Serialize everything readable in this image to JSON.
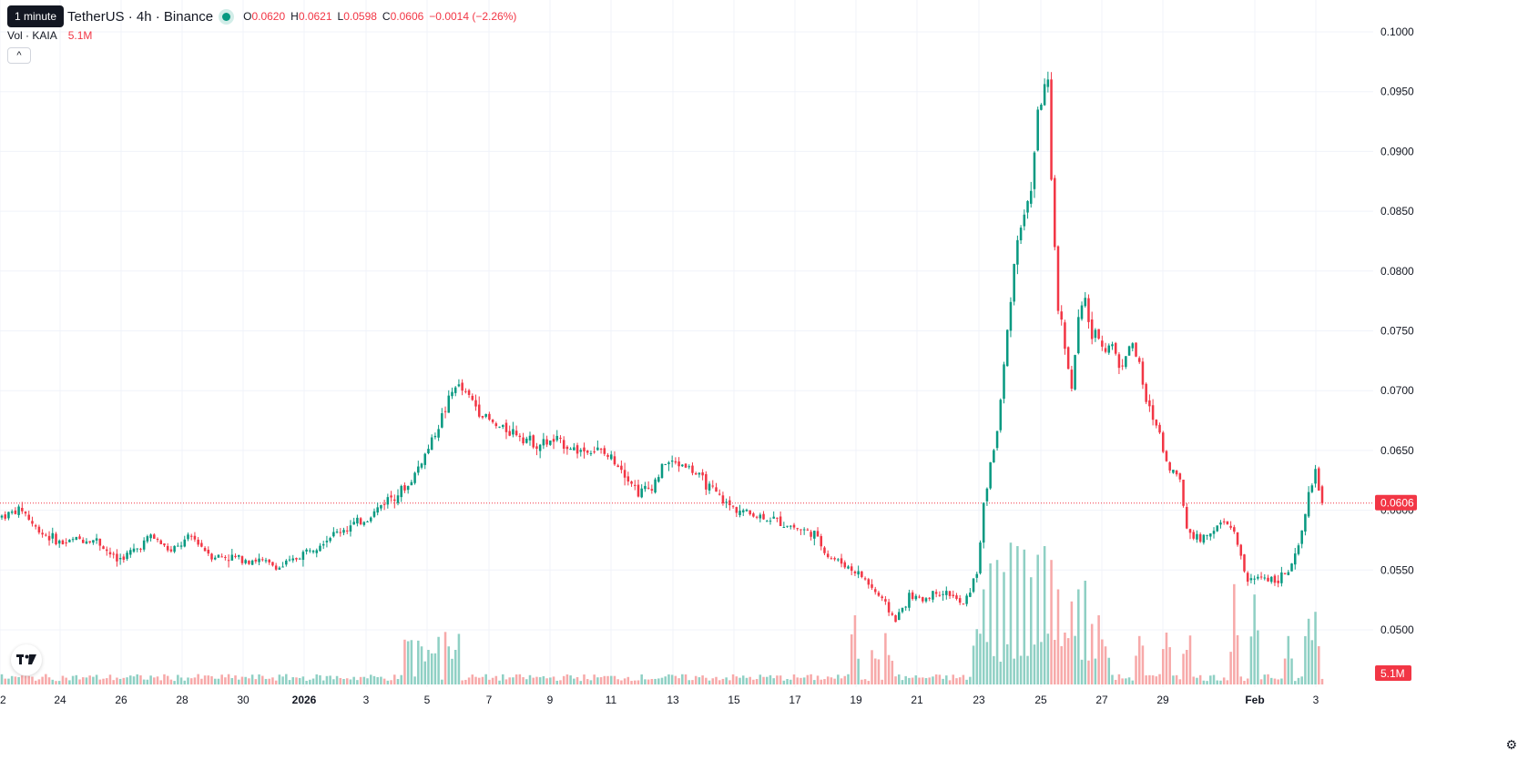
{
  "header": {
    "tooltip": "1 minute",
    "symbol": "TetherUS · 4h · Binance",
    "ohlc": {
      "o_label": "O",
      "o_value": "0.0620",
      "h_label": "H",
      "h_value": "0.0621",
      "l_label": "L",
      "l_value": "0.0598",
      "c_label": "C",
      "c_value": "0.0606"
    },
    "change": "−0.0014 (−2.26%)"
  },
  "volume_legend": {
    "name": "Vol · KAIA",
    "value": "5.1M"
  },
  "collapse_label": "^",
  "price_badge": "0.0606",
  "volume_badge": "5.1M",
  "logo_text": "TV",
  "colors": {
    "up": "#089981",
    "down": "#f23645",
    "up_vol": "#8fd0c4",
    "down_vol": "#f7a9a9",
    "grid": "#f0f3fa"
  },
  "chart_data": {
    "type": "candlestick",
    "y_ticks": [
      "0.1000",
      "0.0950",
      "0.0900",
      "0.0850",
      "0.0800",
      "0.0750",
      "0.0700",
      "0.0650",
      "0.0600",
      "0.0550",
      "0.0500"
    ],
    "ylim": [
      0.046,
      0.1012
    ],
    "x_ticks": [
      "22",
      "24",
      "26",
      "28",
      "30",
      "2026",
      "3",
      "5",
      "7",
      "9",
      "11",
      "13",
      "15",
      "17",
      "19",
      "21",
      "23",
      "25",
      "27",
      "29",
      "Feb",
      "3"
    ],
    "last_price": 0.0606,
    "anchors": [
      [
        0,
        0.0595
      ],
      [
        6,
        0.0601
      ],
      [
        10,
        0.0585
      ],
      [
        14,
        0.0578
      ],
      [
        18,
        0.0572
      ],
      [
        22,
        0.0576
      ],
      [
        28,
        0.0575
      ],
      [
        34,
        0.0558
      ],
      [
        40,
        0.0568
      ],
      [
        44,
        0.0579
      ],
      [
        50,
        0.0565
      ],
      [
        56,
        0.0578
      ],
      [
        62,
        0.0562
      ],
      [
        70,
        0.056
      ],
      [
        76,
        0.0558
      ],
      [
        82,
        0.0552
      ],
      [
        86,
        0.0558
      ],
      [
        92,
        0.057
      ],
      [
        100,
        0.0583
      ],
      [
        108,
        0.0593
      ],
      [
        114,
        0.061
      ],
      [
        120,
        0.062
      ],
      [
        126,
        0.0652
      ],
      [
        128,
        0.0665
      ],
      [
        134,
        0.0705
      ],
      [
        138,
        0.0695
      ],
      [
        142,
        0.068
      ],
      [
        146,
        0.067
      ],
      [
        152,
        0.0665
      ],
      [
        158,
        0.0655
      ],
      [
        164,
        0.0658
      ],
      [
        170,
        0.065
      ],
      [
        176,
        0.065
      ],
      [
        182,
        0.064
      ],
      [
        188,
        0.0615
      ],
      [
        192,
        0.062
      ],
      [
        196,
        0.064
      ],
      [
        202,
        0.0638
      ],
      [
        208,
        0.0622
      ],
      [
        214,
        0.0605
      ],
      [
        220,
        0.0598
      ],
      [
        228,
        0.0592
      ],
      [
        234,
        0.0586
      ],
      [
        240,
        0.058
      ],
      [
        244,
        0.0562
      ],
      [
        248,
        0.0556
      ],
      [
        254,
        0.0545
      ],
      [
        260,
        0.0525
      ],
      [
        264,
        0.0508
      ],
      [
        268,
        0.0528
      ],
      [
        272,
        0.0525
      ],
      [
        276,
        0.0532
      ],
      [
        280,
        0.053
      ],
      [
        284,
        0.052
      ],
      [
        288,
        0.0548
      ],
      [
        290,
        0.0602
      ],
      [
        292,
        0.064
      ],
      [
        294,
        0.0665
      ],
      [
        296,
        0.072
      ],
      [
        298,
        0.078
      ],
      [
        300,
        0.083
      ],
      [
        302,
        0.0845
      ],
      [
        304,
        0.087
      ],
      [
        306,
        0.093
      ],
      [
        308,
        0.0955
      ],
      [
        309,
        0.0955
      ],
      [
        310,
        0.087
      ],
      [
        312,
        0.077
      ],
      [
        314,
        0.074
      ],
      [
        316,
        0.07
      ],
      [
        318,
        0.076
      ],
      [
        320,
        0.0775
      ],
      [
        322,
        0.0745
      ],
      [
        324,
        0.0745
      ],
      [
        326,
        0.0735
      ],
      [
        328,
        0.074
      ],
      [
        330,
        0.072
      ],
      [
        334,
        0.074
      ],
      [
        336,
        0.072
      ],
      [
        338,
        0.069
      ],
      [
        342,
        0.0665
      ],
      [
        344,
        0.064
      ],
      [
        348,
        0.0625
      ],
      [
        350,
        0.0585
      ],
      [
        354,
        0.0575
      ],
      [
        358,
        0.0585
      ],
      [
        362,
        0.059
      ],
      [
        364,
        0.058
      ],
      [
        366,
        0.056
      ],
      [
        368,
        0.054
      ],
      [
        372,
        0.0545
      ],
      [
        376,
        0.0542
      ],
      [
        380,
        0.0548
      ],
      [
        382,
        0.056
      ],
      [
        384,
        0.058
      ],
      [
        386,
        0.0615
      ],
      [
        388,
        0.063
      ],
      [
        390,
        0.0606
      ]
    ],
    "volume_spikes": [
      [
        120,
        0.25
      ],
      [
        124,
        0.22
      ],
      [
        126,
        0.2
      ],
      [
        128,
        0.18
      ],
      [
        132,
        0.22
      ],
      [
        134,
        0.2
      ],
      [
        252,
        0.4
      ],
      [
        258,
        0.15
      ],
      [
        262,
        0.17
      ],
      [
        288,
        0.32
      ],
      [
        290,
        0.55
      ],
      [
        292,
        0.7
      ],
      [
        294,
        0.72
      ],
      [
        296,
        0.65
      ],
      [
        298,
        0.82
      ],
      [
        300,
        0.8
      ],
      [
        302,
        0.78
      ],
      [
        304,
        0.62
      ],
      [
        306,
        0.75
      ],
      [
        308,
        0.8
      ],
      [
        310,
        0.72
      ],
      [
        312,
        0.55
      ],
      [
        314,
        0.3
      ],
      [
        316,
        0.48
      ],
      [
        318,
        0.55
      ],
      [
        320,
        0.6
      ],
      [
        322,
        0.35
      ],
      [
        324,
        0.4
      ],
      [
        326,
        0.22
      ],
      [
        336,
        0.28
      ],
      [
        344,
        0.3
      ],
      [
        350,
        0.2
      ],
      [
        364,
        0.58
      ],
      [
        370,
        0.52
      ],
      [
        380,
        0.28
      ],
      [
        386,
        0.38
      ],
      [
        388,
        0.42
      ]
    ]
  }
}
